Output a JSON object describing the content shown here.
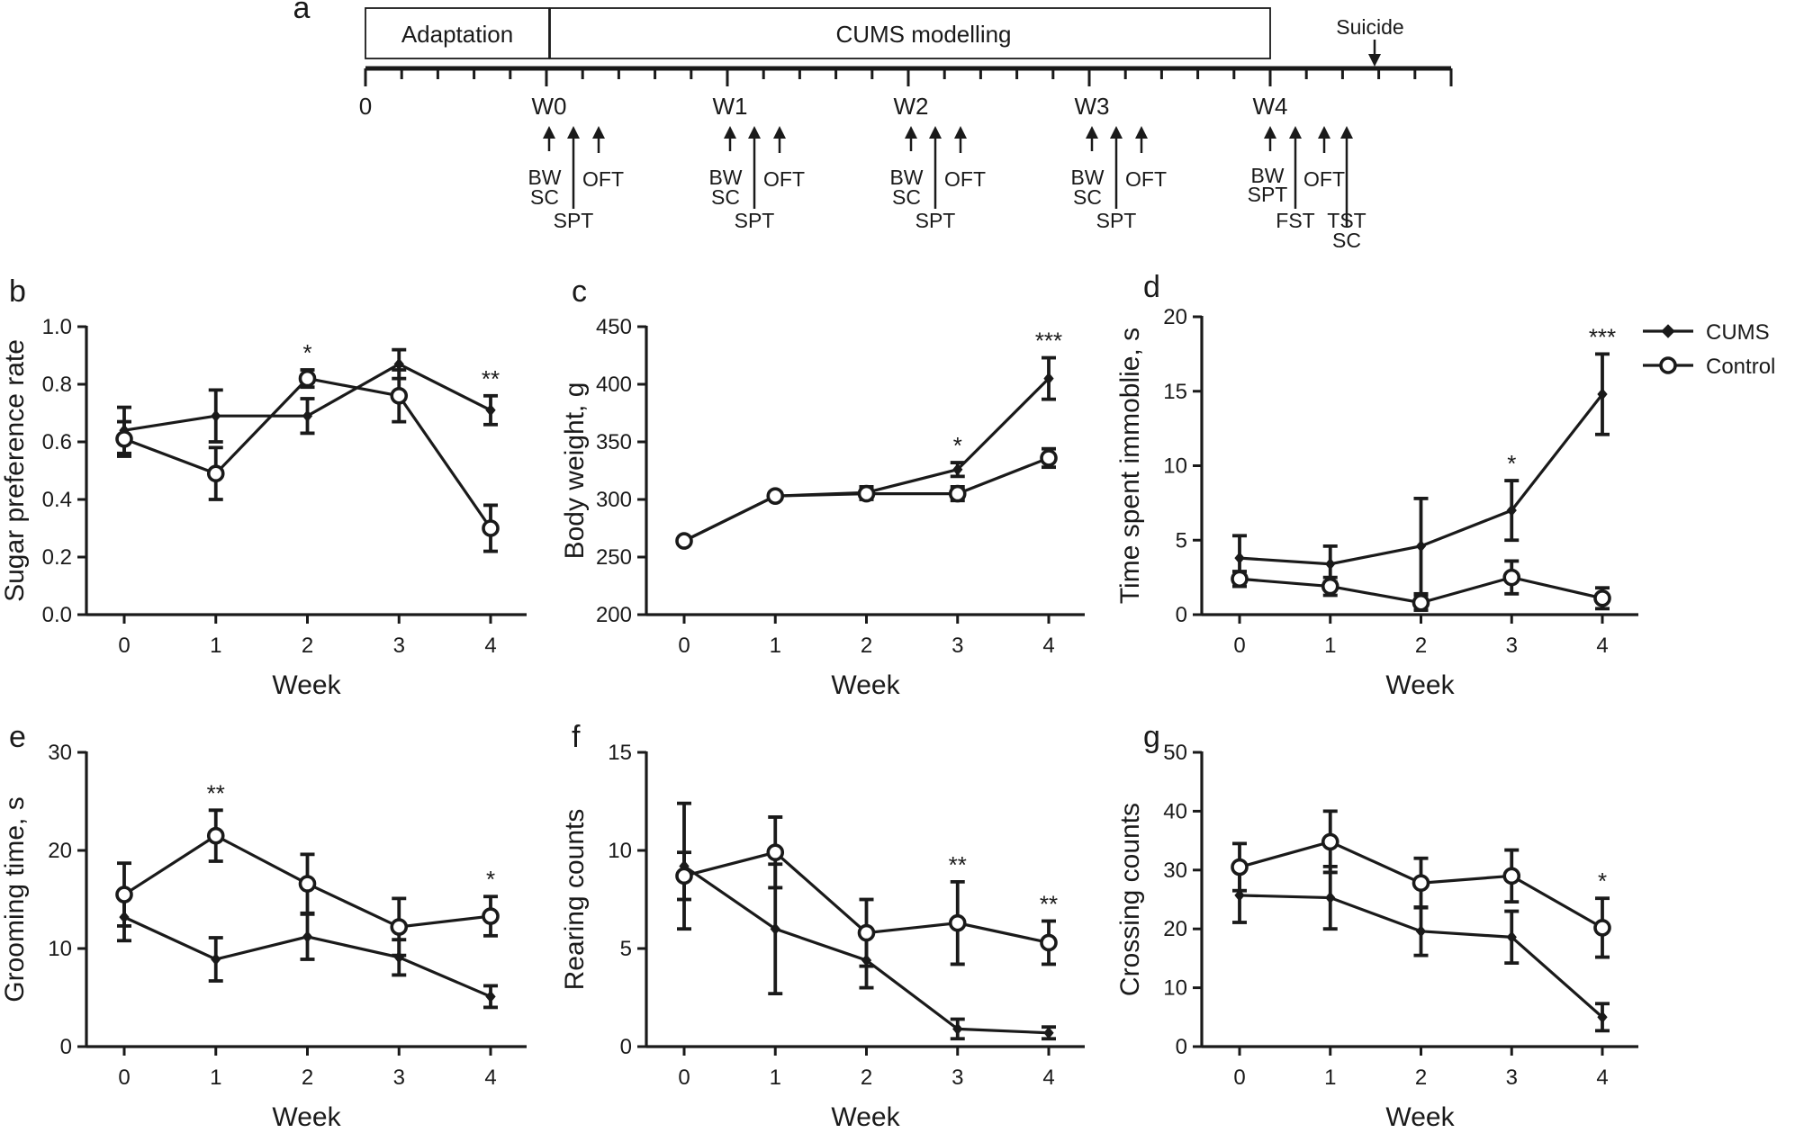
{
  "timeline": {
    "panel_label": "a",
    "boxes": [
      "Adaptation",
      "CUMS modelling"
    ],
    "suicide_label": "Suicide",
    "ticks": [
      "0",
      "W0",
      "W1",
      "W2",
      "W3",
      "W4"
    ],
    "groups": [
      {
        "week": "W0",
        "left": [
          "BW",
          "SC"
        ],
        "middle": "SPT",
        "right": "OFT"
      },
      {
        "week": "W1",
        "left": [
          "BW",
          "SC"
        ],
        "middle": "SPT",
        "right": "OFT"
      },
      {
        "week": "W2",
        "left": [
          "BW",
          "SC"
        ],
        "middle": "SPT",
        "right": "OFT"
      },
      {
        "week": "W3",
        "left": [
          "BW",
          "SC"
        ],
        "middle": "SPT",
        "right": "OFT"
      },
      {
        "week": "W4",
        "left": [
          "BW",
          "SPT"
        ],
        "middle": "FST",
        "right": "OFT",
        "last": [
          "TST",
          "SC"
        ]
      }
    ]
  },
  "legend": {
    "items": [
      {
        "label": "CUMS",
        "marker": "diamond"
      },
      {
        "label": "Control",
        "marker": "circle"
      }
    ]
  },
  "chart_data": [
    {
      "panel": "b",
      "type": "line",
      "xlabel": "Week",
      "ylabel": "Sugar preference rate",
      "categories": [
        "0",
        "1",
        "2",
        "3",
        "4"
      ],
      "ylim": [
        0.0,
        1.0
      ],
      "yticks": [
        "0.0",
        "0.2",
        "0.4",
        "0.6",
        "0.8",
        "1.0"
      ],
      "ytick_values": [
        0,
        0.2,
        0.4,
        0.6,
        0.8,
        1.0
      ],
      "series": [
        {
          "name": "CUMS",
          "values": [
            0.64,
            0.69,
            0.69,
            0.87,
            0.71
          ],
          "errors": [
            0.08,
            0.09,
            0.06,
            0.05,
            0.05
          ]
        },
        {
          "name": "Control",
          "values": [
            0.61,
            0.49,
            0.82,
            0.76,
            0.3
          ],
          "errors": [
            0.06,
            0.09,
            0.03,
            0.09,
            0.08
          ]
        }
      ],
      "annotations": [
        {
          "x": "2",
          "text": "*"
        },
        {
          "x": "4",
          "text": "**"
        }
      ]
    },
    {
      "panel": "c",
      "type": "line",
      "xlabel": "Week",
      "ylabel": "Body weight, g",
      "categories": [
        "0",
        "1",
        "2",
        "3",
        "4"
      ],
      "ylim": [
        200,
        450
      ],
      "yticks": [
        "200",
        "250",
        "300",
        "350",
        "400",
        "450"
      ],
      "ytick_values": [
        200,
        250,
        300,
        350,
        400,
        450
      ],
      "series": [
        {
          "name": "CUMS",
          "values": [
            264,
            303,
            306,
            326,
            405
          ],
          "errors": [
            3,
            3,
            5,
            6,
            18
          ]
        },
        {
          "name": "Control",
          "values": [
            264,
            303,
            305,
            305,
            336
          ],
          "errors": [
            3,
            3,
            5,
            6,
            8
          ]
        }
      ],
      "annotations": [
        {
          "x": "3",
          "text": "*"
        },
        {
          "x": "4",
          "text": "***"
        }
      ]
    },
    {
      "panel": "d",
      "type": "line",
      "xlabel": "Week",
      "ylabel": "Time spent immoblie, s",
      "categories": [
        "0",
        "1",
        "2",
        "3",
        "4"
      ],
      "ylim": [
        0,
        20
      ],
      "yticks": [
        "0",
        "5",
        "10",
        "15",
        "20"
      ],
      "ytick_values": [
        0,
        5,
        10,
        15,
        20
      ],
      "series": [
        {
          "name": "CUMS",
          "values": [
            3.8,
            3.4,
            4.6,
            7.0,
            14.8
          ],
          "errors": [
            1.5,
            1.2,
            3.2,
            2.0,
            2.7
          ]
        },
        {
          "name": "Control",
          "values": [
            2.4,
            1.9,
            0.8,
            2.5,
            1.1
          ],
          "errors": [
            0.5,
            0.6,
            0.5,
            1.1,
            0.7
          ]
        }
      ],
      "annotations": [
        {
          "x": "3",
          "text": "*"
        },
        {
          "x": "4",
          "text": "***"
        }
      ]
    },
    {
      "panel": "e",
      "type": "line",
      "xlabel": "Week",
      "ylabel": "Grooming time, s",
      "categories": [
        "0",
        "1",
        "2",
        "3",
        "4"
      ],
      "ylim": [
        0,
        30
      ],
      "yticks": [
        "0",
        "10",
        "20",
        "30"
      ],
      "ytick_values": [
        0,
        10,
        20,
        30
      ],
      "series": [
        {
          "name": "CUMS",
          "values": [
            13.2,
            8.9,
            11.2,
            9.1,
            5.1
          ],
          "errors": [
            2.4,
            2.2,
            2.3,
            1.8,
            1.1
          ]
        },
        {
          "name": "Control",
          "values": [
            15.5,
            21.5,
            16.6,
            12.2,
            13.3
          ],
          "errors": [
            3.2,
            2.6,
            3.0,
            2.9,
            2.0
          ]
        }
      ],
      "annotations": [
        {
          "x": "1",
          "text": "**"
        },
        {
          "x": "4",
          "text": "*"
        }
      ]
    },
    {
      "panel": "f",
      "type": "line",
      "xlabel": "Week",
      "ylabel": "Rearing counts",
      "categories": [
        "0",
        "1",
        "2",
        "3",
        "4"
      ],
      "ylim": [
        0,
        15
      ],
      "yticks": [
        "0",
        "5",
        "10",
        "15"
      ],
      "ytick_values": [
        0,
        5,
        10,
        15
      ],
      "series": [
        {
          "name": "CUMS",
          "values": [
            9.2,
            6.0,
            4.4,
            0.9,
            0.7
          ],
          "errors": [
            3.2,
            3.3,
            1.4,
            0.5,
            0.3
          ]
        },
        {
          "name": "Control",
          "values": [
            8.7,
            9.9,
            5.8,
            6.3,
            5.3
          ],
          "errors": [
            1.2,
            1.8,
            1.7,
            2.1,
            1.1
          ]
        }
      ],
      "annotations": [
        {
          "x": "3",
          "text": "**"
        },
        {
          "x": "4",
          "text": "**"
        }
      ]
    },
    {
      "panel": "g",
      "type": "line",
      "xlabel": "Week",
      "ylabel": "Crossing counts",
      "categories": [
        "0",
        "1",
        "2",
        "3",
        "4"
      ],
      "ylim": [
        0,
        50
      ],
      "yticks": [
        "0",
        "10",
        "20",
        "30",
        "40",
        "50"
      ],
      "ytick_values": [
        0,
        10,
        20,
        30,
        40,
        50
      ],
      "series": [
        {
          "name": "CUMS",
          "values": [
            25.7,
            25.3,
            19.6,
            18.6,
            5.0
          ],
          "errors": [
            4.6,
            5.3,
            4.1,
            4.4,
            2.3
          ]
        },
        {
          "name": "Control",
          "values": [
            30.5,
            34.8,
            27.8,
            29.0,
            20.2
          ],
          "errors": [
            4.0,
            5.2,
            4.2,
            4.4,
            5.0
          ]
        }
      ],
      "annotations": [
        {
          "x": "4",
          "text": "*"
        }
      ]
    }
  ]
}
